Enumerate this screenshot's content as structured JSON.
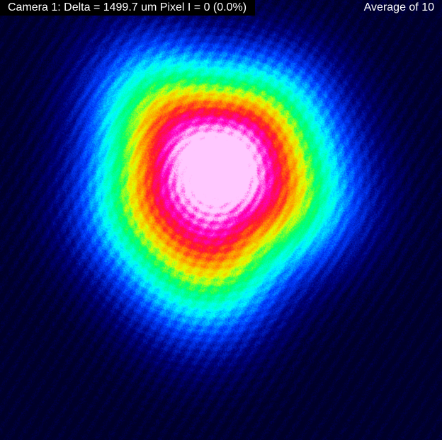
{
  "status": {
    "camera_readout": "Camera 1: Delta = 1499.7 um Pixel I = 0 (0.0%)",
    "averaging": "Average of 10"
  },
  "colors": {
    "background": "#000033",
    "overlay": "#000000",
    "text": "#ffffff",
    "colormap": [
      "#00003a",
      "#0000a0",
      "#0050ff",
      "#00ffff",
      "#00ff60",
      "#ffff00",
      "#ff8000",
      "#ff0000",
      "#ff00ff",
      "#ffd0ff"
    ]
  }
}
